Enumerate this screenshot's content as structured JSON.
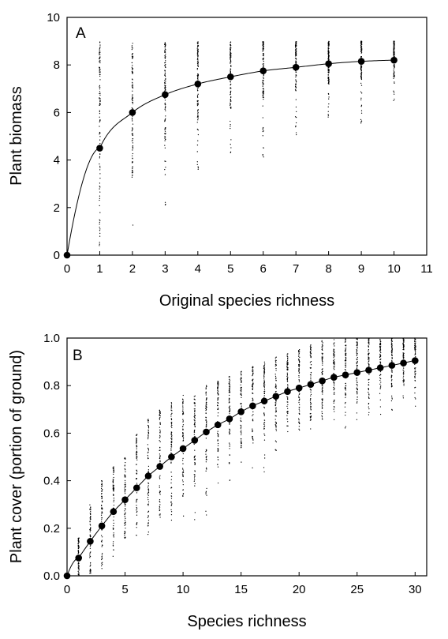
{
  "chart_data": [
    {
      "type": "scatter",
      "panel_label": "A",
      "title": "",
      "xlabel": "Original species richness",
      "ylabel": "Plant biomass",
      "xlim": [
        0,
        11
      ],
      "ylim": [
        0,
        10
      ],
      "xticks": [
        0,
        1,
        2,
        3,
        4,
        5,
        6,
        7,
        8,
        9,
        10,
        11
      ],
      "yticks": [
        0,
        2,
        4,
        6,
        8,
        10
      ],
      "grid": false,
      "legend": "none",
      "mean_points": {
        "x": [
          0,
          1,
          2,
          3,
          4,
          5,
          6,
          7,
          8,
          9,
          10
        ],
        "y": [
          0,
          4.5,
          6.0,
          6.75,
          7.2,
          7.5,
          7.75,
          7.9,
          8.05,
          8.15,
          8.2
        ]
      },
      "fitted_curve": "saturating curve through mean points",
      "scatter_ranges": {
        "x": [
          1,
          2,
          3,
          4,
          5,
          6,
          7,
          8,
          9,
          10
        ],
        "min": [
          0,
          1.1,
          1.9,
          3.6,
          4.1,
          4.0,
          5.0,
          5.6,
          5.1,
          6.3
        ],
        "max": [
          9.0,
          9.0,
          9.0,
          9.0,
          9.0,
          9.0,
          9.0,
          9.0,
          9.0,
          9.0
        ]
      }
    },
    {
      "type": "scatter",
      "panel_label": "B",
      "title": "",
      "xlabel": "Species richness",
      "ylabel": "Plant cover (portion of ground)",
      "xlim": [
        0,
        31
      ],
      "ylim": [
        0,
        1.0
      ],
      "xticks": [
        0,
        5,
        10,
        15,
        20,
        25,
        30
      ],
      "yticks": [
        "0.0",
        "0.2",
        "0.4",
        "0.6",
        "0.8",
        "1.0"
      ],
      "grid": false,
      "legend": "none",
      "mean_points": {
        "x": [
          0,
          1,
          2,
          3,
          4,
          5,
          6,
          7,
          8,
          9,
          10,
          11,
          12,
          13,
          14,
          15,
          16,
          17,
          18,
          19,
          20,
          21,
          22,
          23,
          24,
          25,
          26,
          27,
          28,
          29,
          30
        ],
        "y": [
          0,
          0.075,
          0.145,
          0.21,
          0.27,
          0.32,
          0.37,
          0.42,
          0.46,
          0.5,
          0.535,
          0.57,
          0.605,
          0.635,
          0.66,
          0.69,
          0.715,
          0.735,
          0.755,
          0.775,
          0.79,
          0.805,
          0.82,
          0.835,
          0.845,
          0.855,
          0.865,
          0.875,
          0.885,
          0.895,
          0.905
        ]
      },
      "fitted_curve": "saturating curve through mean points",
      "scatter_ranges": {
        "x": [
          1,
          2,
          3,
          4,
          5,
          6,
          7,
          8,
          9,
          10,
          11,
          12,
          13,
          14,
          15,
          16,
          17,
          18,
          19,
          20,
          21,
          22,
          23,
          24,
          25,
          26,
          27,
          28,
          29,
          30
        ],
        "min": [
          0.0,
          0.0,
          0.02,
          0.08,
          0.13,
          0.16,
          0.17,
          0.2,
          0.22,
          0.22,
          0.22,
          0.24,
          0.34,
          0.38,
          0.41,
          0.42,
          0.43,
          0.52,
          0.54,
          0.58,
          0.6,
          0.61,
          0.62,
          0.62,
          0.64,
          0.66,
          0.67,
          0.69,
          0.7,
          0.71
        ],
        "max": [
          0.16,
          0.3,
          0.4,
          0.46,
          0.5,
          0.6,
          0.66,
          0.7,
          0.73,
          0.76,
          0.78,
          0.8,
          0.82,
          0.84,
          0.86,
          0.88,
          0.9,
          0.92,
          0.94,
          0.96,
          0.98,
          1.0,
          1.0,
          1.0,
          1.0,
          1.0,
          1.0,
          1.0,
          1.0,
          1.0
        ]
      }
    }
  ]
}
